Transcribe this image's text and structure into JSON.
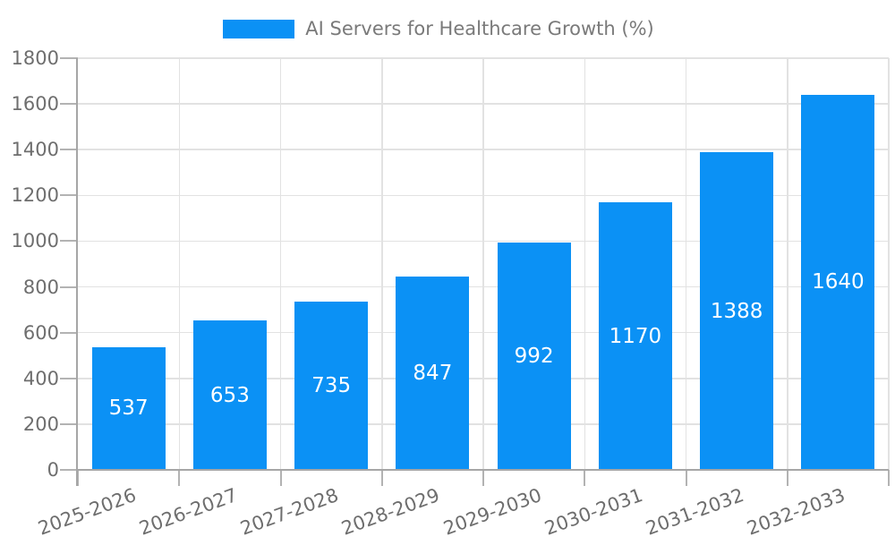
{
  "legend": {
    "label": "AI Servers for Healthcare Growth (%)"
  },
  "colors": {
    "bar": "#0B91F5",
    "grid": "#E2E2E2",
    "axis": "#A6A6A6",
    "tick": "#B3B3B3",
    "tick_text": "#6E6E6E",
    "legend_text": "#7A7A7A",
    "value_text": "#FFFFFF",
    "background": "#FFFFFF"
  },
  "chart_data": {
    "type": "bar",
    "title": "AI Servers for Healthcare Growth (%)",
    "series_name": "AI Servers for Healthcare Growth (%)",
    "categories": [
      "2025-2026",
      "2026-2027",
      "2027-2028",
      "2028-2029",
      "2029-2030",
      "2030-2031",
      "2031-2032",
      "2032-2033"
    ],
    "values": [
      537,
      653,
      735,
      847,
      992,
      1170,
      1388,
      1640
    ],
    "xlabel": "",
    "ylabel": "",
    "ylim": [
      0,
      1800
    ],
    "yticks": [
      0,
      200,
      400,
      600,
      800,
      1000,
      1200,
      1400,
      1600,
      1800
    ],
    "grid": true,
    "legend_position": "top-center",
    "value_labels": "inside-center",
    "x_tick_rotation_deg": 20
  }
}
